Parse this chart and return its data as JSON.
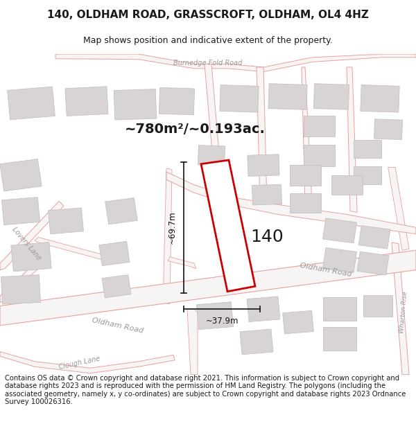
{
  "title_line1": "140, OLDHAM ROAD, GRASSCROFT, OLDHAM, OL4 4HZ",
  "title_line2": "Map shows position and indicative extent of the property.",
  "area_text": "~780m²/~0.193ac.",
  "label_140": "140",
  "dim_height": "~69.7m",
  "dim_width": "~37.9m",
  "footer_text": "Contains OS data © Crown copyright and database right 2021. This information is subject to Crown copyright and database rights 2023 and is reproduced with the permission of HM Land Registry. The polygons (including the associated geometry, namely x, y co-ordinates) are subject to Crown copyright and database rights 2023 Ordnance Survey 100026316.",
  "map_bg": "#f7f4f4",
  "road_stroke": "#e8a0a0",
  "road_fill": "#f7f4f4",
  "building_fill": "#d8d4d4",
  "building_stroke": "#c8c0c0",
  "property_color": "#cc0000",
  "dim_color": "#111111",
  "text_color": "#1a1a1a",
  "road_label_color": "#999999",
  "title_fontsize": 11,
  "subtitle_fontsize": 9,
  "footer_fontsize": 7.2,
  "area_fontsize": 14,
  "label_fontsize": 18,
  "road_label_fontsize": 8,
  "small_road_label_fontsize": 7
}
